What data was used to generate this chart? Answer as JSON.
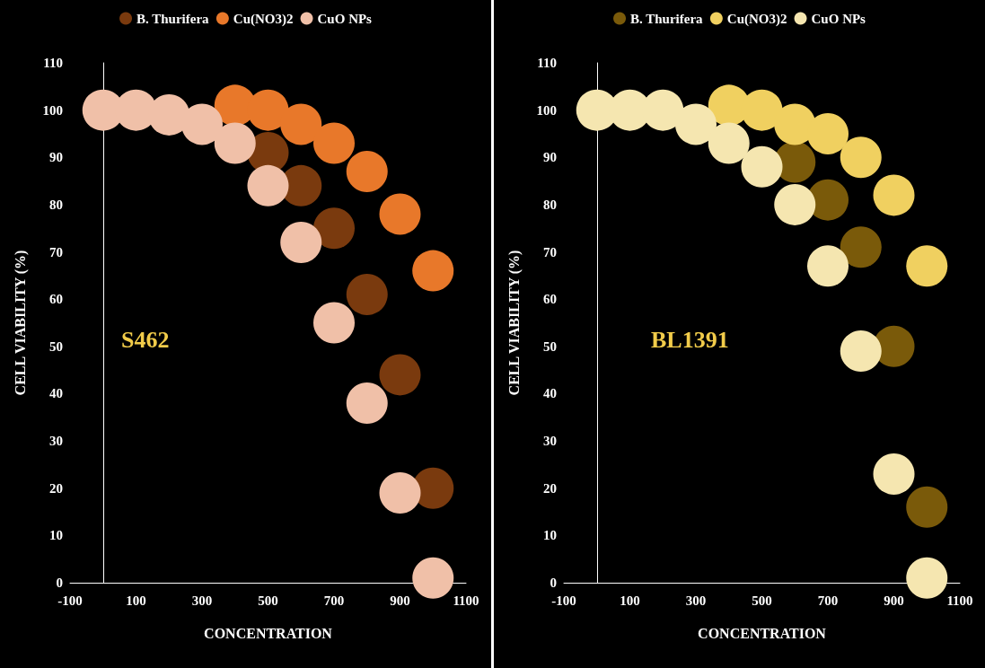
{
  "chart_data": [
    {
      "type": "scatter",
      "xlabel": "CONCENTRATION",
      "ylabel": "CELL VIABILITY (%)",
      "x": [
        0,
        100,
        200,
        300,
        400,
        500,
        600,
        700,
        800,
        900,
        1000
      ],
      "xlim": [
        -100,
        1100
      ],
      "xticks": [
        -100,
        100,
        300,
        500,
        700,
        900,
        1100
      ],
      "ylim": [
        0,
        110
      ],
      "yticks": [
        0,
        10,
        20,
        30,
        40,
        50,
        60,
        70,
        80,
        90,
        100,
        110
      ],
      "grid": false,
      "legend": "top",
      "marker": "circle",
      "annotations": [
        "S462"
      ],
      "series": [
        {
          "name": "B. Thurifera",
          "color": "#7a3a0e",
          "values": [
            null,
            null,
            null,
            null,
            null,
            91,
            84,
            75,
            61,
            44,
            20
          ]
        },
        {
          "name": "Cu(NO3)2",
          "color": "#e8782a",
          "values": [
            null,
            null,
            null,
            null,
            101,
            100,
            97,
            93,
            87,
            78,
            66
          ]
        },
        {
          "name": "CuO NPs",
          "color": "#f0c0a8",
          "values": [
            100,
            100,
            99,
            97,
            93,
            84,
            72,
            55,
            38,
            19,
            1
          ]
        }
      ]
    },
    {
      "type": "scatter",
      "xlabel": "CONCENTRATION",
      "ylabel": "CELL VIABILITY (%)",
      "x": [
        0,
        100,
        200,
        300,
        400,
        500,
        600,
        700,
        800,
        900,
        1000
      ],
      "xlim": [
        -100,
        1100
      ],
      "xticks": [
        -100,
        100,
        300,
        500,
        700,
        900,
        1100
      ],
      "ylim": [
        0,
        110
      ],
      "yticks": [
        0,
        10,
        20,
        30,
        40,
        50,
        60,
        70,
        80,
        90,
        100,
        110
      ],
      "grid": false,
      "legend": "top",
      "marker": "circle",
      "annotations": [
        "BL1391"
      ],
      "series": [
        {
          "name": "B. Thurifera",
          "color": "#7a5a0a",
          "values": [
            null,
            null,
            null,
            null,
            null,
            null,
            89,
            81,
            71,
            50,
            16
          ]
        },
        {
          "name": "Cu(NO3)2",
          "color": "#f0d060",
          "values": [
            null,
            null,
            null,
            null,
            101,
            100,
            97,
            95,
            90,
            82,
            67
          ]
        },
        {
          "name": "CuO NPs",
          "color": "#f5e6b0",
          "values": [
            100,
            100,
            100,
            97,
            93,
            88,
            80,
            67,
            49,
            23,
            1
          ]
        }
      ]
    }
  ]
}
